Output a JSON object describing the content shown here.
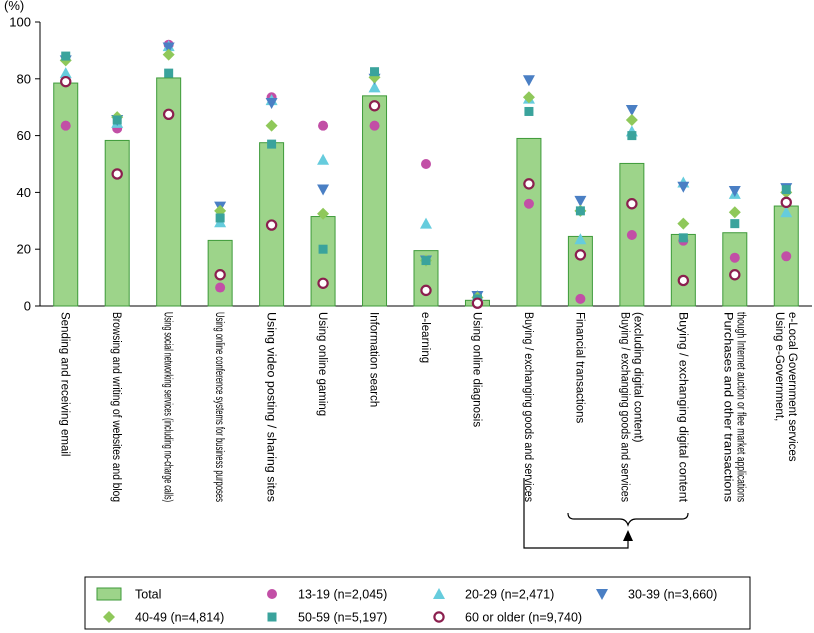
{
  "chart_data": {
    "type": "bar",
    "unit": "(%)",
    "ylim": [
      0,
      100
    ],
    "yticks": [
      0,
      20,
      40,
      60,
      80,
      100
    ],
    "grid": false,
    "legend_position": "bottom",
    "categories": [
      [
        "Sending and receiving email"
      ],
      [
        "Browsing and writing of websites and blog"
      ],
      [
        "Using social networking services (including no-charge calls)"
      ],
      [
        "Using online conference systems for business purposes"
      ],
      [
        "Using video posting / sharing sites"
      ],
      [
        "Using online gaming"
      ],
      [
        "Information search"
      ],
      [
        "e-learning"
      ],
      [
        "Using online diagnosis"
      ],
      [
        "Buying / exchanging goods and services"
      ],
      [
        "Financial transactions"
      ],
      [
        "Buying / exchanging goods and services",
        "(excluding digital content)"
      ],
      [
        "Buying / exchanging digital content"
      ],
      [
        "Purchases and other transactions",
        "though Internet auction or flee market applications"
      ],
      [
        "Using e-Government,",
        "e-Local Government services"
      ]
    ],
    "series": [
      {
        "name": "Total",
        "marker": "bar",
        "color": "#9dd48a",
        "stroke": "#3e9a3a",
        "values": [
          78.5,
          58.3,
          80.3,
          23.1,
          57.5,
          31.5,
          74.0,
          19.5,
          2.0,
          59.0,
          24.5,
          50.2,
          25.2,
          25.8,
          35.2
        ]
      },
      {
        "name": "13-19 (n=2,045)",
        "marker": "circle",
        "color": "#c24fa6",
        "values": [
          63.5,
          62.5,
          92.0,
          6.5,
          73.5,
          63.5,
          63.5,
          50.0,
          0.8,
          36.0,
          2.5,
          25.0,
          23.0,
          17.0,
          17.5
        ]
      },
      {
        "name": "20-29 (n=2,471)",
        "marker": "triangle-up",
        "color": "#66ccdd",
        "values": [
          82.0,
          64.5,
          91.5,
          29.5,
          72.5,
          51.5,
          77.0,
          29.0,
          3.5,
          73.0,
          23.5,
          61.5,
          43.5,
          39.5,
          33.0
        ]
      },
      {
        "name": "30-39 (n=3,660)",
        "marker": "triangle-down",
        "color": "#4a7fc4",
        "values": [
          86.5,
          65.5,
          91.0,
          35.0,
          71.5,
          41.0,
          80.0,
          16.0,
          3.5,
          79.5,
          37.0,
          69.0,
          42.0,
          40.5,
          41.5
        ]
      },
      {
        "name": "40-49 (n=4,814)",
        "marker": "diamond",
        "color": "#8fc85a",
        "values": [
          86.5,
          66.5,
          88.5,
          33.5,
          63.5,
          32.5,
          80.5,
          16.0,
          3.0,
          73.5,
          33.5,
          65.5,
          29.0,
          33.0,
          40.0
        ]
      },
      {
        "name": "50-59 (n=5,197)",
        "marker": "square",
        "color": "#3aa39c",
        "values": [
          88.0,
          65.5,
          82.0,
          31.0,
          57.0,
          20.0,
          82.5,
          16.0,
          2.5,
          68.5,
          33.5,
          60.0,
          24.0,
          29.0,
          41.0
        ]
      },
      {
        "name": "60 or older (n=9,740)",
        "marker": "open-circle",
        "color": "#8b1f4e",
        "values": [
          79.0,
          46.5,
          67.5,
          11.0,
          28.5,
          8.0,
          70.5,
          5.5,
          1.0,
          43.0,
          18.0,
          36.0,
          9.0,
          11.0,
          36.5
        ]
      }
    ]
  }
}
